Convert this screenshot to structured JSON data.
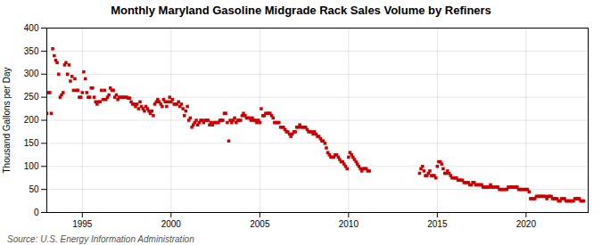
{
  "chart_data": {
    "type": "scatter",
    "title": "Monthly Maryland Gasoline Midgrade Rack Sales Volume by Refiners",
    "ylabel": "Thousand Gallons per Day",
    "source": "Source: U.S. Energy Information Administration",
    "color": "#cc0000",
    "marker": "square",
    "grid": true,
    "xlim": [
      1993.0,
      2023.5
    ],
    "xticks": [
      1995,
      2000,
      2005,
      2010,
      2015,
      2020
    ],
    "ylim": [
      0,
      400
    ],
    "yticks": [
      0,
      50,
      100,
      150,
      200,
      250,
      300,
      350,
      400
    ],
    "x": [
      1993.0,
      1993.08,
      1993.17,
      1993.25,
      1993.33,
      1993.42,
      1993.5,
      1993.58,
      1993.67,
      1993.75,
      1993.83,
      1993.92,
      1994.0,
      1994.08,
      1994.17,
      1994.25,
      1994.33,
      1994.42,
      1994.5,
      1994.58,
      1994.67,
      1994.75,
      1994.83,
      1994.92,
      1995.0,
      1995.08,
      1995.17,
      1995.25,
      1995.33,
      1995.42,
      1995.5,
      1995.58,
      1995.67,
      1995.75,
      1995.83,
      1995.92,
      1996.0,
      1996.08,
      1996.17,
      1996.25,
      1996.33,
      1996.42,
      1996.5,
      1996.58,
      1996.67,
      1996.75,
      1996.83,
      1996.92,
      1997.0,
      1997.08,
      1997.17,
      1997.25,
      1997.33,
      1997.42,
      1997.5,
      1997.58,
      1997.67,
      1997.75,
      1997.83,
      1997.92,
      1998.0,
      1998.08,
      1998.17,
      1998.25,
      1998.33,
      1998.42,
      1998.5,
      1998.58,
      1998.67,
      1998.75,
      1998.83,
      1998.92,
      1999.0,
      1999.08,
      1999.17,
      1999.25,
      1999.33,
      1999.42,
      1999.5,
      1999.58,
      1999.67,
      1999.75,
      1999.83,
      1999.92,
      2000.0,
      2000.08,
      2000.17,
      2000.25,
      2000.33,
      2000.42,
      2000.5,
      2000.58,
      2000.67,
      2000.75,
      2000.83,
      2000.92,
      2001.0,
      2001.08,
      2001.17,
      2001.25,
      2001.33,
      2001.42,
      2001.5,
      2001.58,
      2001.67,
      2001.75,
      2001.83,
      2001.92,
      2002.0,
      2002.08,
      2002.17,
      2002.25,
      2002.33,
      2002.42,
      2002.5,
      2002.58,
      2002.67,
      2002.75,
      2002.83,
      2002.92,
      2003.0,
      2003.08,
      2003.17,
      2003.25,
      2003.33,
      2003.42,
      2003.5,
      2003.58,
      2003.67,
      2003.75,
      2003.83,
      2003.92,
      2004.0,
      2004.08,
      2004.17,
      2004.25,
      2004.33,
      2004.42,
      2004.5,
      2004.58,
      2004.67,
      2004.75,
      2004.83,
      2004.92,
      2005.0,
      2005.08,
      2005.17,
      2005.25,
      2005.33,
      2005.42,
      2005.5,
      2005.58,
      2005.67,
      2005.75,
      2005.83,
      2005.92,
      2006.0,
      2006.08,
      2006.17,
      2006.25,
      2006.33,
      2006.42,
      2006.5,
      2006.58,
      2006.67,
      2006.75,
      2006.83,
      2006.92,
      2007.0,
      2007.08,
      2007.17,
      2007.25,
      2007.33,
      2007.42,
      2007.5,
      2007.58,
      2007.67,
      2007.75,
      2007.83,
      2007.92,
      2008.0,
      2008.08,
      2008.17,
      2008.25,
      2008.33,
      2008.42,
      2008.5,
      2008.58,
      2008.67,
      2008.75,
      2008.83,
      2008.92,
      2009.0,
      2009.08,
      2009.17,
      2009.25,
      2009.33,
      2009.42,
      2009.5,
      2009.58,
      2009.67,
      2009.75,
      2009.83,
      2009.92,
      2010.0,
      2010.08,
      2010.17,
      2010.25,
      2010.33,
      2010.42,
      2010.5,
      2010.58,
      2010.67,
      2010.75,
      2010.83,
      2010.92,
      2011.0,
      2011.08,
      2011.17,
      2014.0,
      2014.08,
      2014.17,
      2014.25,
      2014.33,
      2014.42,
      2014.5,
      2014.58,
      2014.67,
      2014.75,
      2014.83,
      2014.92,
      2015.0,
      2015.08,
      2015.17,
      2015.25,
      2015.33,
      2015.42,
      2015.5,
      2015.58,
      2015.67,
      2015.75,
      2015.83,
      2015.92,
      2016.0,
      2016.08,
      2016.17,
      2016.25,
      2016.33,
      2016.42,
      2016.5,
      2016.58,
      2016.67,
      2016.75,
      2016.83,
      2016.92,
      2017.0,
      2017.08,
      2017.17,
      2017.25,
      2017.33,
      2017.42,
      2017.5,
      2017.58,
      2017.67,
      2017.75,
      2017.83,
      2017.92,
      2018.0,
      2018.08,
      2018.17,
      2018.25,
      2018.33,
      2018.42,
      2018.5,
      2018.58,
      2018.67,
      2018.75,
      2018.83,
      2018.92,
      2019.0,
      2019.08,
      2019.17,
      2019.25,
      2019.33,
      2019.42,
      2019.5,
      2019.58,
      2019.67,
      2019.75,
      2019.83,
      2019.92,
      2020.0,
      2020.08,
      2020.17,
      2020.25,
      2020.33,
      2020.42,
      2020.5,
      2020.58,
      2020.67,
      2020.75,
      2020.83,
      2020.92,
      2021.0,
      2021.08,
      2021.17,
      2021.25,
      2021.33,
      2021.42,
      2021.5,
      2021.58,
      2021.67,
      2021.75,
      2021.83,
      2021.92,
      2022.0,
      2022.08,
      2022.17,
      2022.25,
      2022.33,
      2022.42,
      2022.5,
      2022.58,
      2022.67,
      2022.75,
      2022.83,
      2022.92,
      2023.0,
      2023.08,
      2023.17,
      2023.25
    ],
    "values": [
      215,
      260,
      260,
      215,
      355,
      340,
      330,
      325,
      300,
      250,
      255,
      260,
      320,
      325,
      300,
      320,
      285,
      295,
      265,
      290,
      265,
      265,
      250,
      250,
      260,
      305,
      290,
      260,
      250,
      250,
      270,
      270,
      250,
      240,
      235,
      240,
      240,
      265,
      245,
      265,
      245,
      250,
      255,
      270,
      265,
      265,
      250,
      255,
      245,
      250,
      250,
      250,
      250,
      250,
      250,
      248,
      248,
      240,
      235,
      235,
      230,
      235,
      225,
      240,
      230,
      225,
      220,
      230,
      225,
      220,
      215,
      220,
      210,
      235,
      240,
      245,
      240,
      235,
      230,
      245,
      240,
      230,
      240,
      250,
      240,
      245,
      235,
      235,
      235,
      240,
      230,
      235,
      225,
      210,
      220,
      230,
      200,
      205,
      185,
      190,
      195,
      200,
      190,
      195,
      200,
      200,
      195,
      200,
      200,
      200,
      190,
      195,
      190,
      195,
      195,
      195,
      195,
      200,
      200,
      200,
      215,
      215,
      195,
      155,
      200,
      195,
      200,
      205,
      195,
      200,
      200,
      200,
      210,
      215,
      210,
      205,
      205,
      205,
      200,
      205,
      200,
      200,
      195,
      200,
      195,
      225,
      210,
      210,
      215,
      215,
      215,
      215,
      210,
      205,
      195,
      195,
      195,
      195,
      185,
      185,
      185,
      180,
      175,
      175,
      170,
      165,
      170,
      175,
      175,
      185,
      185,
      190,
      185,
      185,
      185,
      185,
      180,
      175,
      175,
      175,
      170,
      175,
      170,
      165,
      165,
      160,
      155,
      155,
      150,
      140,
      130,
      125,
      120,
      120,
      120,
      125,
      125,
      120,
      115,
      110,
      110,
      105,
      100,
      95,
      120,
      130,
      125,
      120,
      115,
      110,
      105,
      100,
      95,
      90,
      95,
      95,
      95,
      90,
      90,
      85,
      95,
      100,
      90,
      80,
      80,
      85,
      90,
      80,
      80,
      80,
      75,
      100,
      110,
      110,
      105,
      95,
      85,
      85,
      90,
      85,
      80,
      75,
      75,
      75,
      75,
      70,
      70,
      70,
      70,
      65,
      65,
      65,
      65,
      60,
      60,
      65,
      65,
      60,
      60,
      60,
      60,
      60,
      55,
      55,
      55,
      55,
      55,
      60,
      55,
      55,
      55,
      55,
      55,
      50,
      50,
      50,
      50,
      50,
      50,
      55,
      55,
      55,
      55,
      55,
      55,
      55,
      50,
      50,
      50,
      50,
      50,
      50,
      50,
      45,
      30,
      30,
      30,
      30,
      35,
      35,
      35,
      35,
      35,
      35,
      35,
      30,
      35,
      35,
      35,
      30,
      30,
      30,
      30,
      25,
      25,
      30,
      30,
      30,
      25,
      25,
      25,
      25,
      25,
      25,
      30,
      30,
      30,
      30,
      25,
      25,
      25
    ]
  }
}
